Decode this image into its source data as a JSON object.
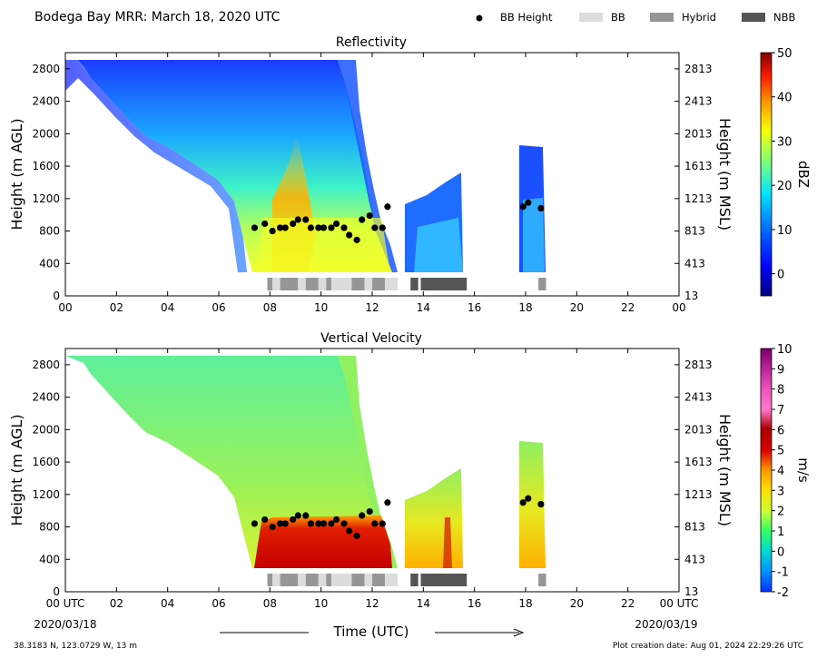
{
  "header": {
    "title": "Bodega Bay MRR:  March 18, 2020 UTC",
    "legend": [
      {
        "label": "BB Height",
        "kind": "dot",
        "color": "#000000"
      },
      {
        "label": "BB",
        "kind": "box",
        "color": "#dcdcdc"
      },
      {
        "label": "Hybrid",
        "kind": "box",
        "color": "#969696"
      },
      {
        "label": "NBB",
        "kind": "box",
        "color": "#555555"
      }
    ]
  },
  "footer": {
    "location": "38.3183 N, 123.0729 W, 13 m",
    "created": "Plot creation date: Aug 01, 2024 22:29:26 UTC",
    "time_label": "Time (UTC)",
    "start_date": "2020/03/18",
    "end_date": "2020/03/19"
  },
  "colors": {
    "bb": "#dcdcdc",
    "hybrid": "#969696",
    "nbb": "#555555",
    "dot": "#000000"
  },
  "chart_data": [
    {
      "type": "heatmap",
      "title": "Reflectivity",
      "ylabel": "Height (m AGL)",
      "ylabel_right": "Height (m MSL)",
      "xlim": [
        0,
        24
      ],
      "ylim": [
        0,
        3000
      ],
      "x_ticks": [
        "00",
        "02",
        "04",
        "06",
        "08",
        "10",
        "12",
        "14",
        "16",
        "18",
        "20",
        "22",
        "00"
      ],
      "y_ticks": [
        "0",
        "400",
        "800",
        "1200",
        "1600",
        "2000",
        "2400",
        "2800"
      ],
      "y_ticks_right": [
        "13",
        "413",
        "813",
        "1213",
        "1613",
        "2013",
        "2413",
        "2813"
      ],
      "colorbar": {
        "label": "dBZ",
        "range": [
          -5,
          50
        ],
        "ticks": [
          "0",
          "10",
          "20",
          "30",
          "40",
          "50"
        ]
      },
      "bb_height": [
        {
          "x": 7.4,
          "y": 840
        },
        {
          "x": 7.8,
          "y": 890
        },
        {
          "x": 8.1,
          "y": 800
        },
        {
          "x": 8.4,
          "y": 840
        },
        {
          "x": 8.6,
          "y": 840
        },
        {
          "x": 8.9,
          "y": 890
        },
        {
          "x": 9.1,
          "y": 940
        },
        {
          "x": 9.4,
          "y": 940
        },
        {
          "x": 9.6,
          "y": 840
        },
        {
          "x": 9.9,
          "y": 840
        },
        {
          "x": 10.1,
          "y": 840
        },
        {
          "x": 10.4,
          "y": 840
        },
        {
          "x": 10.6,
          "y": 890
        },
        {
          "x": 10.9,
          "y": 840
        },
        {
          "x": 11.1,
          "y": 750
        },
        {
          "x": 11.4,
          "y": 690
        },
        {
          "x": 11.6,
          "y": 940
        },
        {
          "x": 11.9,
          "y": 990
        },
        {
          "x": 12.1,
          "y": 840
        },
        {
          "x": 12.4,
          "y": 840
        },
        {
          "x": 12.6,
          "y": 1100
        },
        {
          "x": 17.9,
          "y": 1100
        },
        {
          "x": 18.1,
          "y": 1150
        },
        {
          "x": 18.6,
          "y": 1080
        }
      ],
      "bb_type": [
        {
          "start": 7.9,
          "end": 8.1,
          "kind": "hybrid"
        },
        {
          "start": 8.1,
          "end": 8.4,
          "kind": "bb"
        },
        {
          "start": 8.4,
          "end": 9.1,
          "kind": "hybrid"
        },
        {
          "start": 9.1,
          "end": 9.4,
          "kind": "bb"
        },
        {
          "start": 9.4,
          "end": 9.9,
          "kind": "hybrid"
        },
        {
          "start": 9.9,
          "end": 10.2,
          "kind": "bb"
        },
        {
          "start": 10.2,
          "end": 10.4,
          "kind": "hybrid"
        },
        {
          "start": 10.4,
          "end": 11.2,
          "kind": "bb"
        },
        {
          "start": 11.2,
          "end": 11.7,
          "kind": "hybrid"
        },
        {
          "start": 11.7,
          "end": 12.0,
          "kind": "bb"
        },
        {
          "start": 12.0,
          "end": 12.5,
          "kind": "hybrid"
        },
        {
          "start": 12.5,
          "end": 13.0,
          "kind": "bb"
        },
        {
          "start": 13.5,
          "end": 13.8,
          "kind": "nbb"
        },
        {
          "start": 13.9,
          "end": 15.7,
          "kind": "nbb"
        },
        {
          "start": 18.5,
          "end": 18.8,
          "kind": "hybrid"
        }
      ]
    },
    {
      "type": "heatmap",
      "title": "Vertical Velocity",
      "ylabel": "Height (m AGL)",
      "ylabel_right": "Height (m MSL)",
      "xlim": [
        0,
        24
      ],
      "ylim": [
        0,
        3000
      ],
      "x_ticks": [
        "00 UTC",
        "02",
        "04",
        "06",
        "08",
        "10",
        "12",
        "14",
        "16",
        "18",
        "20",
        "22",
        "00 UTC"
      ],
      "y_ticks": [
        "0",
        "400",
        "800",
        "1200",
        "1600",
        "2000",
        "2400",
        "2800"
      ],
      "y_ticks_right": [
        "13",
        "413",
        "813",
        "1213",
        "1613",
        "2013",
        "2413",
        "2813"
      ],
      "colorbar": {
        "label": "m/s",
        "range": [
          -2,
          10
        ],
        "ticks": [
          "-2",
          "-1",
          "0",
          "1",
          "2",
          "3",
          "4",
          "5",
          "6",
          "7",
          "8",
          "9",
          "10"
        ]
      },
      "bb_height": [
        {
          "x": 7.4,
          "y": 840
        },
        {
          "x": 7.8,
          "y": 890
        },
        {
          "x": 8.1,
          "y": 800
        },
        {
          "x": 8.4,
          "y": 840
        },
        {
          "x": 8.6,
          "y": 840
        },
        {
          "x": 8.9,
          "y": 890
        },
        {
          "x": 9.1,
          "y": 940
        },
        {
          "x": 9.4,
          "y": 940
        },
        {
          "x": 9.6,
          "y": 840
        },
        {
          "x": 9.9,
          "y": 840
        },
        {
          "x": 10.1,
          "y": 840
        },
        {
          "x": 10.4,
          "y": 840
        },
        {
          "x": 10.6,
          "y": 890
        },
        {
          "x": 10.9,
          "y": 840
        },
        {
          "x": 11.1,
          "y": 750
        },
        {
          "x": 11.4,
          "y": 690
        },
        {
          "x": 11.6,
          "y": 940
        },
        {
          "x": 11.9,
          "y": 990
        },
        {
          "x": 12.1,
          "y": 840
        },
        {
          "x": 12.4,
          "y": 840
        },
        {
          "x": 12.6,
          "y": 1100
        },
        {
          "x": 17.9,
          "y": 1100
        },
        {
          "x": 18.1,
          "y": 1150
        },
        {
          "x": 18.6,
          "y": 1080
        }
      ],
      "bb_type": [
        {
          "start": 7.9,
          "end": 8.1,
          "kind": "hybrid"
        },
        {
          "start": 8.1,
          "end": 8.4,
          "kind": "bb"
        },
        {
          "start": 8.4,
          "end": 9.1,
          "kind": "hybrid"
        },
        {
          "start": 9.1,
          "end": 9.4,
          "kind": "bb"
        },
        {
          "start": 9.4,
          "end": 9.9,
          "kind": "hybrid"
        },
        {
          "start": 9.9,
          "end": 10.2,
          "kind": "bb"
        },
        {
          "start": 10.2,
          "end": 10.4,
          "kind": "hybrid"
        },
        {
          "start": 10.4,
          "end": 11.2,
          "kind": "bb"
        },
        {
          "start": 11.2,
          "end": 11.7,
          "kind": "hybrid"
        },
        {
          "start": 11.7,
          "end": 12.0,
          "kind": "bb"
        },
        {
          "start": 12.0,
          "end": 12.5,
          "kind": "hybrid"
        },
        {
          "start": 12.5,
          "end": 13.0,
          "kind": "bb"
        },
        {
          "start": 13.5,
          "end": 13.8,
          "kind": "nbb"
        },
        {
          "start": 13.9,
          "end": 15.7,
          "kind": "nbb"
        },
        {
          "start": 18.5,
          "end": 18.8,
          "kind": "hybrid"
        }
      ]
    }
  ]
}
